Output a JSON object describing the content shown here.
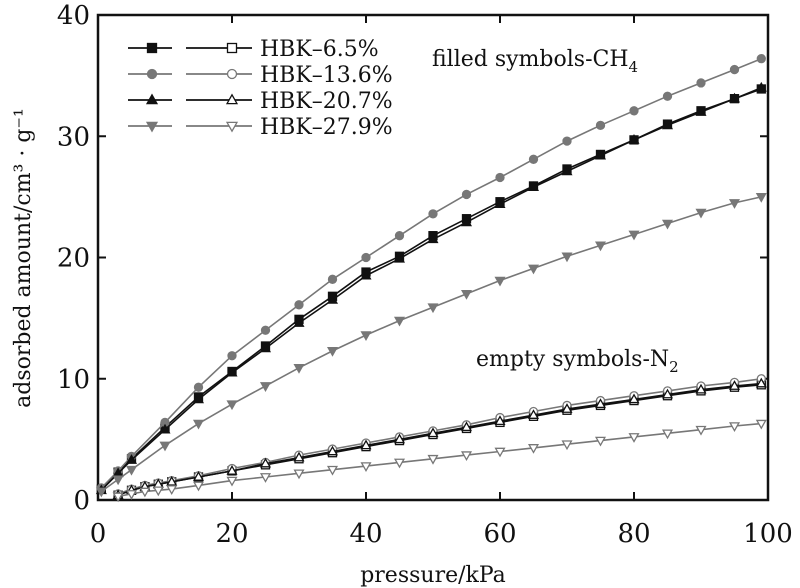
{
  "chart_data": {
    "type": "line",
    "xlabel": "pressure/kPa",
    "ylabel": "adsorbed amount/cm³ · g⁻¹",
    "xlim": [
      0,
      100
    ],
    "ylim": [
      0,
      40
    ],
    "xticks": [
      "0",
      "20",
      "40",
      "60",
      "80",
      "100"
    ],
    "yticks": [
      "0",
      "10",
      "20",
      "30",
      "40"
    ],
    "grid": false,
    "legend_position": "top-left",
    "legend": [
      "HBK–6.5%",
      "HBK–13.6%",
      "HBK–20.7%",
      "HBK–27.9%"
    ],
    "annotations": {
      "filled": {
        "text": "filled symbols-CH",
        "sub": "4"
      },
      "empty": {
        "text": "empty symbols-N",
        "sub": "2"
      }
    },
    "series": [
      {
        "name": "HBK–6.5%",
        "gas": "CH4",
        "marker": "square",
        "filled": true,
        "color": "#111111",
        "points": [
          [
            0.5,
            0.9
          ],
          [
            3,
            2.3
          ],
          [
            5,
            3.4
          ],
          [
            10,
            6.0
          ],
          [
            15,
            8.5
          ],
          [
            20,
            10.6
          ],
          [
            25,
            12.7
          ],
          [
            30,
            14.9
          ],
          [
            35,
            16.8
          ],
          [
            40,
            18.8
          ],
          [
            45,
            20.1
          ],
          [
            50,
            21.8
          ],
          [
            55,
            23.2
          ],
          [
            60,
            24.6
          ],
          [
            65,
            25.9
          ],
          [
            70,
            27.3
          ],
          [
            75,
            28.5
          ],
          [
            80,
            29.7
          ],
          [
            85,
            31.0
          ],
          [
            90,
            32.1
          ],
          [
            95,
            33.1
          ],
          [
            99,
            33.9
          ]
        ]
      },
      {
        "name": "HBK–13.6%",
        "gas": "CH4",
        "marker": "circle",
        "filled": true,
        "color": "#777777",
        "points": [
          [
            0.5,
            1.0
          ],
          [
            3,
            2.4
          ],
          [
            5,
            3.6
          ],
          [
            10,
            6.4
          ],
          [
            15,
            9.3
          ],
          [
            20,
            11.9
          ],
          [
            25,
            14.0
          ],
          [
            30,
            16.1
          ],
          [
            35,
            18.2
          ],
          [
            40,
            20.0
          ],
          [
            45,
            21.8
          ],
          [
            50,
            23.6
          ],
          [
            55,
            25.2
          ],
          [
            60,
            26.6
          ],
          [
            65,
            28.1
          ],
          [
            70,
            29.6
          ],
          [
            75,
            30.9
          ],
          [
            80,
            32.1
          ],
          [
            85,
            33.3
          ],
          [
            90,
            34.4
          ],
          [
            95,
            35.5
          ],
          [
            99,
            36.4
          ]
        ]
      },
      {
        "name": "HBK–20.7%",
        "gas": "CH4",
        "marker": "triangle-up",
        "filled": true,
        "color": "#111111",
        "points": [
          [
            0.5,
            0.8
          ],
          [
            3,
            2.2
          ],
          [
            5,
            3.3
          ],
          [
            10,
            5.8
          ],
          [
            15,
            8.3
          ],
          [
            20,
            10.5
          ],
          [
            25,
            12.5
          ],
          [
            30,
            14.6
          ],
          [
            35,
            16.5
          ],
          [
            40,
            18.5
          ],
          [
            45,
            19.9
          ],
          [
            50,
            21.5
          ],
          [
            55,
            22.9
          ],
          [
            60,
            24.4
          ],
          [
            65,
            25.8
          ],
          [
            70,
            27.1
          ],
          [
            75,
            28.4
          ],
          [
            80,
            29.7
          ],
          [
            85,
            30.9
          ],
          [
            90,
            32.0
          ],
          [
            95,
            33.1
          ],
          [
            99,
            34.0
          ]
        ]
      },
      {
        "name": "HBK–27.9%",
        "gas": "CH4",
        "marker": "triangle-down",
        "filled": true,
        "color": "#777777",
        "points": [
          [
            0.5,
            0.7
          ],
          [
            3,
            1.7
          ],
          [
            5,
            2.5
          ],
          [
            10,
            4.5
          ],
          [
            15,
            6.3
          ],
          [
            20,
            7.9
          ],
          [
            25,
            9.4
          ],
          [
            30,
            10.9
          ],
          [
            35,
            12.3
          ],
          [
            40,
            13.6
          ],
          [
            45,
            14.8
          ],
          [
            50,
            15.9
          ],
          [
            55,
            17.0
          ],
          [
            60,
            18.1
          ],
          [
            65,
            19.1
          ],
          [
            70,
            20.1
          ],
          [
            75,
            21.0
          ],
          [
            80,
            21.9
          ],
          [
            85,
            22.8
          ],
          [
            90,
            23.7
          ],
          [
            95,
            24.5
          ],
          [
            99,
            25.0
          ]
        ]
      },
      {
        "name": "HBK–6.5%",
        "gas": "N2",
        "marker": "square",
        "filled": false,
        "color": "#111111",
        "points": [
          [
            3,
            0.4
          ],
          [
            5,
            0.8
          ],
          [
            7,
            1.1
          ],
          [
            9,
            1.3
          ],
          [
            11,
            1.5
          ],
          [
            15,
            1.9
          ],
          [
            20,
            2.4
          ],
          [
            25,
            2.9
          ],
          [
            30,
            3.4
          ],
          [
            35,
            3.9
          ],
          [
            40,
            4.4
          ],
          [
            45,
            4.9
          ],
          [
            50,
            5.4
          ],
          [
            55,
            5.9
          ],
          [
            60,
            6.4
          ],
          [
            65,
            6.9
          ],
          [
            70,
            7.4
          ],
          [
            75,
            7.8
          ],
          [
            80,
            8.2
          ],
          [
            85,
            8.6
          ],
          [
            90,
            9.0
          ],
          [
            95,
            9.3
          ],
          [
            99,
            9.5
          ]
        ]
      },
      {
        "name": "HBK–13.6%",
        "gas": "N2",
        "marker": "circle",
        "filled": false,
        "color": "#777777",
        "points": [
          [
            3,
            0.5
          ],
          [
            5,
            0.9
          ],
          [
            7,
            1.2
          ],
          [
            9,
            1.4
          ],
          [
            11,
            1.6
          ],
          [
            15,
            2.0
          ],
          [
            20,
            2.6
          ],
          [
            25,
            3.1
          ],
          [
            30,
            3.7
          ],
          [
            35,
            4.2
          ],
          [
            40,
            4.7
          ],
          [
            45,
            5.2
          ],
          [
            50,
            5.7
          ],
          [
            55,
            6.2
          ],
          [
            60,
            6.8
          ],
          [
            65,
            7.3
          ],
          [
            70,
            7.8
          ],
          [
            75,
            8.2
          ],
          [
            80,
            8.6
          ],
          [
            85,
            9.0
          ],
          [
            90,
            9.4
          ],
          [
            95,
            9.7
          ],
          [
            99,
            10.0
          ]
        ]
      },
      {
        "name": "HBK–20.7%",
        "gas": "N2",
        "marker": "triangle-up",
        "filled": false,
        "color": "#111111",
        "points": [
          [
            3,
            0.4
          ],
          [
            5,
            0.8
          ],
          [
            7,
            1.1
          ],
          [
            9,
            1.3
          ],
          [
            11,
            1.5
          ],
          [
            15,
            1.9
          ],
          [
            20,
            2.4
          ],
          [
            25,
            3.0
          ],
          [
            30,
            3.5
          ],
          [
            35,
            4.0
          ],
          [
            40,
            4.5
          ],
          [
            45,
            5.0
          ],
          [
            50,
            5.5
          ],
          [
            55,
            6.0
          ],
          [
            60,
            6.5
          ],
          [
            65,
            7.0
          ],
          [
            70,
            7.5
          ],
          [
            75,
            7.9
          ],
          [
            80,
            8.3
          ],
          [
            85,
            8.7
          ],
          [
            90,
            9.1
          ],
          [
            95,
            9.4
          ],
          [
            99,
            9.6
          ]
        ]
      },
      {
        "name": "HBK–27.9%",
        "gas": "N2",
        "marker": "triangle-down",
        "filled": false,
        "color": "#777777",
        "points": [
          [
            3,
            0.3
          ],
          [
            5,
            0.5
          ],
          [
            7,
            0.7
          ],
          [
            9,
            0.8
          ],
          [
            11,
            0.9
          ],
          [
            15,
            1.2
          ],
          [
            20,
            1.6
          ],
          [
            25,
            1.9
          ],
          [
            30,
            2.2
          ],
          [
            35,
            2.5
          ],
          [
            40,
            2.8
          ],
          [
            45,
            3.1
          ],
          [
            50,
            3.4
          ],
          [
            55,
            3.7
          ],
          [
            60,
            4.0
          ],
          [
            65,
            4.3
          ],
          [
            70,
            4.6
          ],
          [
            75,
            4.9
          ],
          [
            80,
            5.2
          ],
          [
            85,
            5.5
          ],
          [
            90,
            5.8
          ],
          [
            95,
            6.1
          ],
          [
            99,
            6.3
          ]
        ]
      }
    ]
  }
}
